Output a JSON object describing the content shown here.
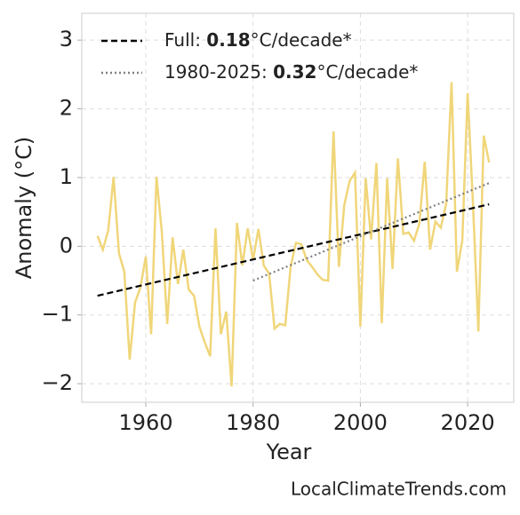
{
  "chart_data": {
    "type": "line",
    "x_label": "Year",
    "y_label": "Anomaly (°C)",
    "source": "LocalClimateTrends.com",
    "x": [
      1951,
      1952,
      1953,
      1954,
      1955,
      1956,
      1957,
      1958,
      1959,
      1960,
      1961,
      1962,
      1963,
      1964,
      1965,
      1966,
      1967,
      1968,
      1969,
      1970,
      1971,
      1972,
      1973,
      1974,
      1975,
      1976,
      1977,
      1978,
      1979,
      1980,
      1981,
      1982,
      1983,
      1984,
      1985,
      1986,
      1987,
      1988,
      1989,
      1990,
      1991,
      1992,
      1993,
      1994,
      1995,
      1996,
      1997,
      1998,
      1999,
      2000,
      2001,
      2002,
      2003,
      2004,
      2005,
      2006,
      2007,
      2008,
      2009,
      2010,
      2011,
      2012,
      2013,
      2014,
      2015,
      2016,
      2017,
      2018,
      2019,
      2020,
      2021,
      2022,
      2023,
      2024
    ],
    "series": [
      {
        "color": "#f0d67a",
        "values": [
          0.15,
          -0.05,
          0.23,
          1.01,
          -0.1,
          -0.37,
          -1.65,
          -0.82,
          -0.6,
          -0.15,
          -1.28,
          1.01,
          0.2,
          -1.13,
          0.13,
          -0.55,
          -0.05,
          -0.63,
          -0.72,
          -1.17,
          -1.4,
          -1.6,
          0.26,
          -1.28,
          -0.95,
          -2.04,
          0.34,
          -0.28,
          0.26,
          -0.2,
          0.25,
          -0.28,
          -0.4,
          -1.2,
          -1.13,
          -1.15,
          -0.3,
          0.05,
          0.03,
          -0.2,
          -0.3,
          -0.41,
          -0.49,
          -0.5,
          1.67,
          -0.3,
          0.6,
          0.95,
          1.07,
          -1.17,
          0.99,
          0.1,
          1.21,
          -1.12,
          0.99,
          -0.33,
          1.28,
          0.18,
          0.2,
          0.08,
          0.33,
          1.23,
          -0.05,
          0.36,
          0.27,
          0.62,
          2.39,
          -0.37,
          0.08,
          2.23,
          0.61,
          -1.24,
          1.61,
          1.22
        ]
      },
      {
        "name": [
          "Full: ",
          "0.18",
          "°C/decade*"
        ],
        "color": "#000000",
        "dash": "7,4",
        "x": [
          1951,
          2024
        ],
        "values": [
          -0.72,
          0.61
        ]
      },
      {
        "name": [
          "1980-2025: ",
          "0.32",
          "°C/decade*"
        ],
        "color": "#808080",
        "dash": "2,3",
        "x": [
          1980,
          2024
        ],
        "values": [
          -0.5,
          0.92
        ]
      }
    ],
    "xlim": [
      1948.07,
      2028.6
    ],
    "ylim": [
      -2.27,
      3.39
    ],
    "xticks": [
      1960,
      1980,
      2000,
      2020
    ],
    "yticks": [
      {
        "value": -2,
        "label": "−2"
      },
      {
        "value": -1,
        "label": "−1"
      },
      0,
      1,
      2,
      3
    ],
    "grid": true,
    "legend": "upper left"
  }
}
